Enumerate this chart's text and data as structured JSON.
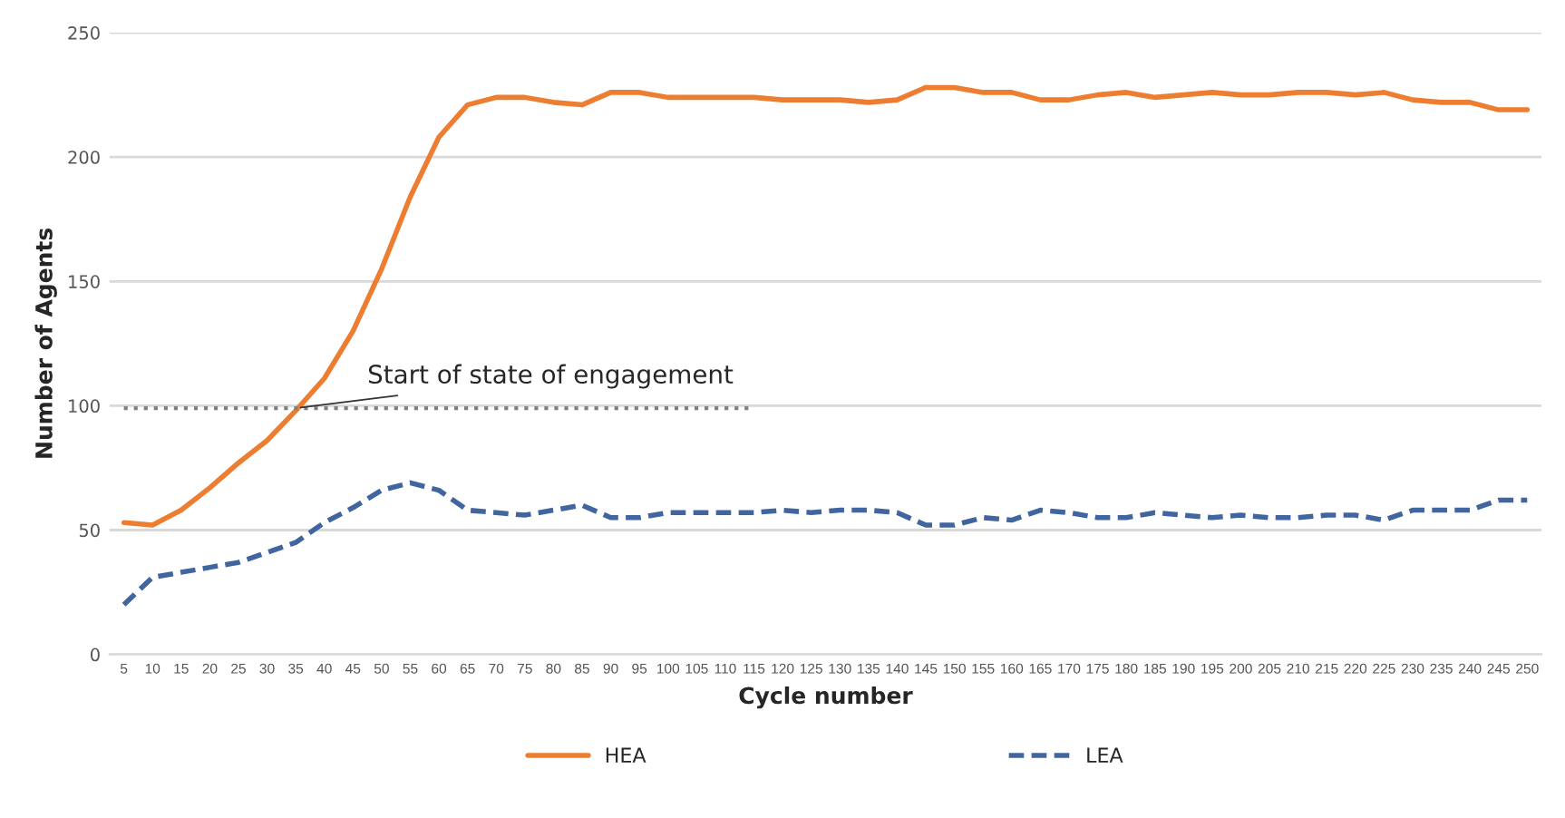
{
  "chart_data": {
    "type": "line",
    "xlabel": "Cycle number",
    "ylabel": "Number of Agents",
    "categories": [
      "5",
      "10",
      "15",
      "20",
      "25",
      "30",
      "35",
      "40",
      "45",
      "50",
      "55",
      "60",
      "65",
      "70",
      "75",
      "80",
      "85",
      "90",
      "95",
      "100",
      "105",
      "110",
      "115",
      "120",
      "125",
      "130",
      "135",
      "140",
      "145",
      "150",
      "155",
      "160",
      "165",
      "170",
      "175",
      "180",
      "185",
      "190",
      "195",
      "200",
      "205",
      "210",
      "215",
      "220",
      "225",
      "230",
      "235",
      "240",
      "245",
      "250"
    ],
    "series": [
      {
        "name": "HEA",
        "color": "#ed7d31",
        "line_style": "solid",
        "values": [
          53,
          52,
          58,
          67,
          77,
          86,
          98,
          111,
          130,
          155,
          184,
          208,
          221,
          224,
          224,
          222,
          221,
          226,
          226,
          224,
          224,
          224,
          224,
          223,
          223,
          223,
          222,
          223,
          228,
          228,
          226,
          226,
          223,
          223,
          225,
          226,
          224,
          225,
          226,
          225,
          225,
          226,
          226,
          225,
          226,
          223,
          222,
          222,
          219,
          219
        ]
      },
      {
        "name": "LEA",
        "color": "#41659f",
        "line_style": "dashed",
        "values": [
          20,
          31,
          33,
          35,
          37,
          41,
          45,
          53,
          59,
          66,
          69,
          66,
          58,
          57,
          56,
          58,
          60,
          55,
          55,
          57,
          57,
          57,
          57,
          58,
          57,
          58,
          58,
          57,
          52,
          52,
          55,
          54,
          58,
          57,
          55,
          55,
          57,
          56,
          55,
          56,
          55,
          55,
          56,
          56,
          54,
          58,
          58,
          58,
          62,
          62
        ]
      },
      {
        "type": "line",
        "color": "#808080",
        "line_style": "dotted",
        "values": [
          99,
          99,
          99,
          99,
          99,
          99,
          99,
          99,
          99,
          99,
          99,
          99,
          99,
          99,
          99,
          99,
          99,
          99,
          99,
          99,
          99,
          99,
          99,
          null,
          null,
          null,
          null,
          null,
          null,
          null,
          null,
          null,
          null,
          null,
          null,
          null,
          null,
          null,
          null,
          null,
          null,
          null,
          null,
          null,
          null,
          null,
          null,
          null,
          null,
          null
        ]
      }
    ],
    "annotations": [
      {
        "text": "Start of state of engagement",
        "x": "35",
        "y": 99
      }
    ],
    "ylim": [
      0,
      250
    ],
    "yticks": [
      0,
      50,
      100,
      150,
      200,
      250
    ],
    "grid": "y",
    "legend": "bottom"
  }
}
